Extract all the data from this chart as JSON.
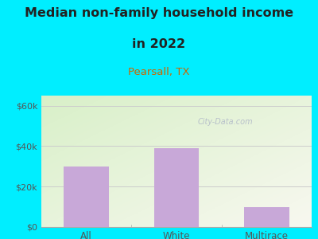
{
  "title_line1": "Median non-family household income",
  "title_line2": "in 2022",
  "subtitle": "Pearsall, TX",
  "categories": [
    "All",
    "White",
    "Multirace"
  ],
  "values": [
    30000,
    39000,
    10000
  ],
  "bar_color": "#c8a8d8",
  "title_fontsize": 11.5,
  "subtitle_fontsize": 9.5,
  "subtitle_color": "#cc6600",
  "title_color": "#222222",
  "yticks": [
    0,
    20000,
    40000,
    60000
  ],
  "ytick_labels": [
    "$0",
    "$20k",
    "$40k",
    "$60k"
  ],
  "ylim": [
    0,
    65000
  ],
  "bg_outer": "#00eeff",
  "bg_plot_top_left": "#d8f0c8",
  "bg_plot_bottom_right": "#f8f8f0",
  "watermark": "City-Data.com",
  "axis_label_color": "#555555",
  "tick_label_color": "#555555"
}
